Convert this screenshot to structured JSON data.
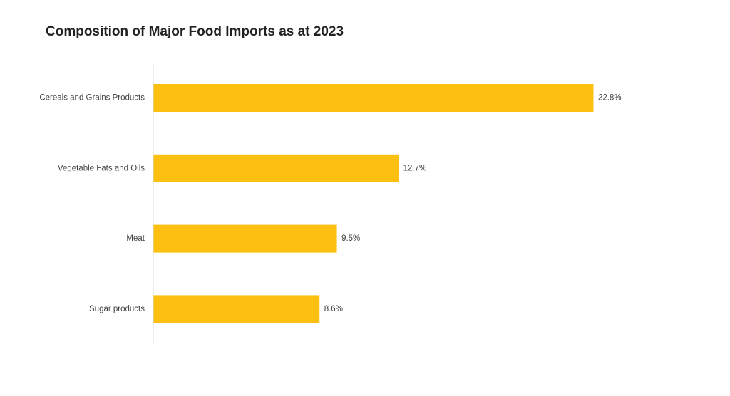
{
  "chart_data": {
    "type": "bar",
    "orientation": "horizontal",
    "title": "Composition of Major Food Imports as at 2023",
    "categories": [
      "Cereals and Grains Products",
      "Vegetable Fats and Oils",
      "Meat",
      "Sugar products"
    ],
    "values": [
      22.8,
      12.7,
      9.5,
      8.6
    ],
    "value_labels": [
      "22.8%",
      "12.7%",
      "9.5%",
      "8.6%"
    ],
    "xlim": [
      0,
      25
    ],
    "grid": false,
    "legend": "none",
    "bar_color": "#FDC010",
    "axis_color": "#D9D9D9"
  }
}
